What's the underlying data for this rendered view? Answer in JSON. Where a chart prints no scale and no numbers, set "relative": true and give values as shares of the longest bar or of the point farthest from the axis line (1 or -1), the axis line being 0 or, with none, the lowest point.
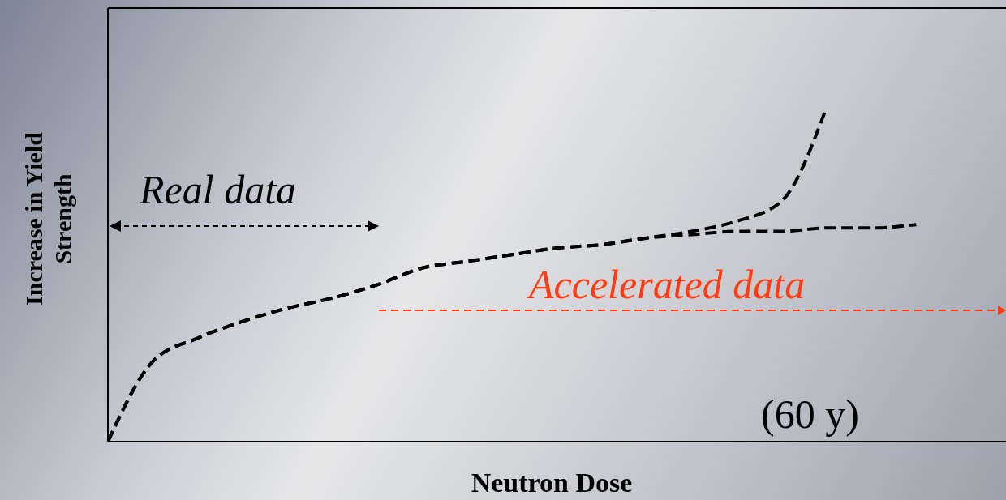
{
  "chart_data": {
    "type": "line",
    "relative": true,
    "xlabel": "Neutron Dose",
    "ylabel": "Increase in Yield Strength",
    "categories": [
      null,
      null,
      null,
      null,
      null,
      null,
      null,
      null,
      null,
      null,
      null,
      null,
      null,
      null,
      null,
      null,
      null,
      null,
      null,
      null,
      null
    ],
    "series": [
      {
        "color": "#000000",
        "values": [
          0,
          0.24,
          0.31,
          0.36,
          0.4,
          0.43,
          0.47,
          0.52,
          0.54,
          0.56,
          0.58,
          0.59,
          0.61,
          0.62,
          0.63,
          0.63,
          0.64,
          0.64,
          0.65,
          null,
          null
        ]
      },
      {
        "color": "#000000",
        "values": [
          0,
          0.24,
          0.31,
          0.36,
          0.4,
          0.43,
          0.47,
          0.52,
          0.54,
          0.56,
          0.58,
          0.59,
          0.61,
          0.63,
          0.66,
          0.72,
          1,
          null,
          null,
          null,
          null
        ]
      }
    ],
    "annotations": [
      "Real data",
      "Accelerated data",
      "(60 y)"
    ],
    "line_style": "dashed",
    "marker": "none",
    "grid": false,
    "legend": false
  }
}
